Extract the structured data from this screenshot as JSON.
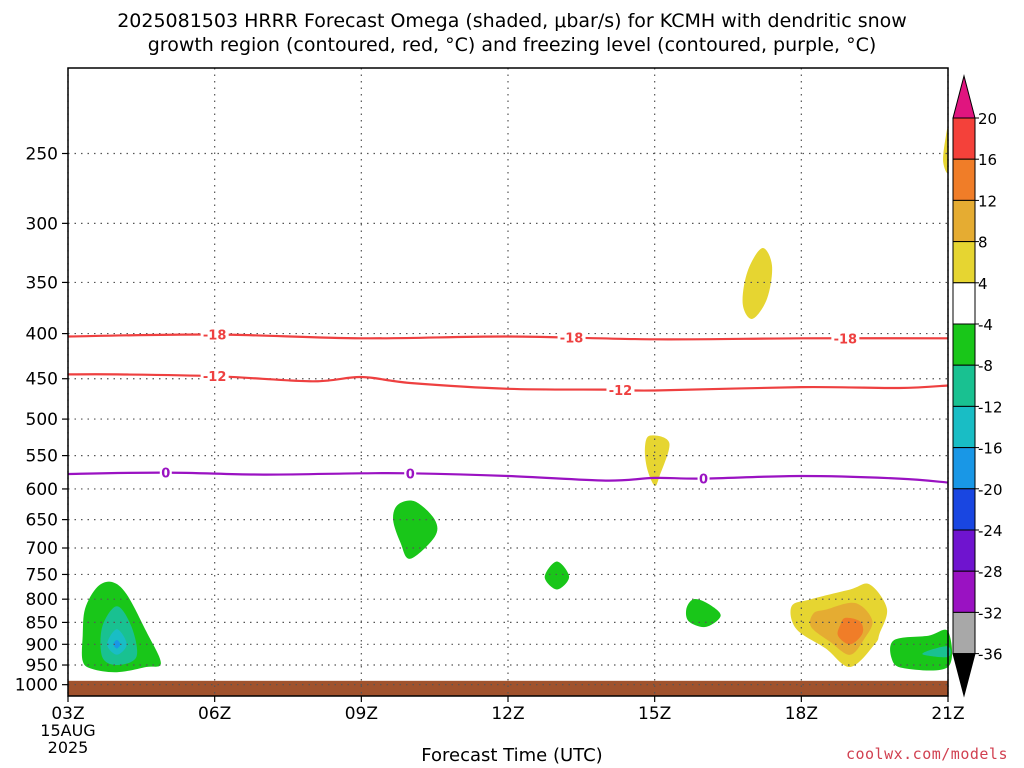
{
  "title_line1": "2025081503 HRRR Forecast Omega (shaded, μbar/s) for KCMH with dendritic snow",
  "title_line2": "growth region (contoured, red, °C) and freezing level (contoured, purple, °C)",
  "credit": "coolwx.com/models",
  "chart_data": {
    "type": "contour",
    "title": "2025081503 HRRR Forecast Omega (shaded, μbar/s) for KCMH with dendritic snow growth region (contoured, red, °C) and freezing level (contoured, purple, °C)",
    "xlabel": "Forecast Time (UTC)",
    "x_ticks": [
      "03Z",
      "06Z",
      "09Z",
      "12Z",
      "15Z",
      "18Z",
      "21Z"
    ],
    "x_tick_hours": [
      3,
      6,
      9,
      12,
      15,
      18,
      21
    ],
    "x_date_lines": [
      "15AUG",
      "2025"
    ],
    "xlim_hours": [
      3,
      21
    ],
    "y_ticks": [
      250,
      300,
      350,
      400,
      450,
      500,
      550,
      600,
      650,
      700,
      750,
      800,
      850,
      900,
      950,
      1000
    ],
    "ylim_hpa": [
      200,
      1030
    ],
    "y_scale": "log",
    "grid": true,
    "colorbar": {
      "labels": [
        "20",
        "16",
        "12",
        "8",
        "4",
        "-4",
        "-8",
        "-12",
        "-16",
        "-20",
        "-24",
        "-28",
        "-32",
        "-36"
      ],
      "colors": [
        "#e0157f",
        "#f4413a",
        "#f07d28",
        "#e5ac32",
        "#e6d531",
        "#ffffff",
        "#19c619",
        "#19c191",
        "#19bdc5",
        "#1997e6",
        "#1946e1",
        "#6f14cf",
        "#9a12c2",
        "#a8a8a8",
        "#000000"
      ]
    },
    "contours": [
      {
        "label": "-18",
        "color": "#ee4040",
        "points": [
          [
            3,
            403
          ],
          [
            6,
            401
          ],
          [
            9,
            405
          ],
          [
            12,
            403
          ],
          [
            15,
            406
          ],
          [
            18,
            405
          ],
          [
            21,
            405
          ]
        ],
        "label_hours": [
          6,
          13.3,
          18.9
        ]
      },
      {
        "label": "-12",
        "color": "#ee4040",
        "points": [
          [
            3,
            445
          ],
          [
            4,
            445
          ],
          [
            6,
            447
          ],
          [
            8,
            453
          ],
          [
            9,
            448
          ],
          [
            10,
            455
          ],
          [
            12,
            462
          ],
          [
            14,
            463
          ],
          [
            15,
            464
          ],
          [
            18,
            460
          ],
          [
            20,
            461
          ],
          [
            21,
            458
          ]
        ],
        "label_hours": [
          6,
          14.3
        ]
      },
      {
        "label": "0",
        "color": "#9a12c2",
        "points": [
          [
            3,
            577
          ],
          [
            5,
            575
          ],
          [
            7,
            578
          ],
          [
            9,
            576
          ],
          [
            10,
            576
          ],
          [
            12,
            580
          ],
          [
            14,
            587
          ],
          [
            15,
            583
          ],
          [
            16,
            584
          ],
          [
            18,
            580
          ],
          [
            20,
            584
          ],
          [
            21,
            590
          ]
        ],
        "label_hours": [
          5,
          10,
          16
        ]
      }
    ],
    "omega_regions": [
      {
        "value": "-4 to -8",
        "color": "#19c619",
        "points": [
          [
            3.6,
            775
          ],
          [
            3.9,
            765
          ],
          [
            4.2,
            790
          ],
          [
            4.6,
            870
          ],
          [
            4.9,
            945
          ],
          [
            4.6,
            955
          ],
          [
            4.0,
            968
          ],
          [
            3.5,
            960
          ],
          [
            3.3,
            940
          ],
          [
            3.3,
            880
          ],
          [
            3.35,
            820
          ]
        ]
      },
      {
        "value": "-8 to -12",
        "color": "#19c191",
        "points": [
          [
            4.0,
            815
          ],
          [
            4.3,
            860
          ],
          [
            4.4,
            930
          ],
          [
            4.0,
            950
          ],
          [
            3.7,
            930
          ],
          [
            3.7,
            860
          ]
        ]
      },
      {
        "value": "-12 to -16",
        "color": "#19bdc5",
        "points": [
          [
            4.0,
            865
          ],
          [
            4.2,
            900
          ],
          [
            4.0,
            925
          ],
          [
            3.8,
            900
          ]
        ]
      },
      {
        "value": "-16 to -20",
        "color": "#1997e6",
        "points": [
          [
            4.0,
            890
          ],
          [
            4.07,
            900
          ],
          [
            4.0,
            910
          ],
          [
            3.93,
            900
          ]
        ]
      },
      {
        "value": "-4 to -8",
        "color": "#19c619",
        "points": [
          [
            9.75,
            625
          ],
          [
            10.1,
            620
          ],
          [
            10.5,
            650
          ],
          [
            10.5,
            680
          ],
          [
            10.0,
            720
          ],
          [
            9.8,
            690
          ],
          [
            9.65,
            650
          ]
        ]
      },
      {
        "value": "-4 to -8",
        "color": "#19c619",
        "points": [
          [
            13.0,
            725
          ],
          [
            13.25,
            755
          ],
          [
            13.0,
            780
          ],
          [
            12.75,
            755
          ]
        ]
      },
      {
        "value": "-4 to -8",
        "color": "#19c619",
        "points": [
          [
            15.8,
            800
          ],
          [
            16.1,
            810
          ],
          [
            16.35,
            835
          ],
          [
            16.05,
            860
          ],
          [
            15.7,
            848
          ],
          [
            15.65,
            820
          ]
        ]
      },
      {
        "value": "-4 to -8",
        "color": "#19c619",
        "points": [
          [
            19.9,
            890
          ],
          [
            20.6,
            880
          ],
          [
            21.0,
            870
          ],
          [
            21.0,
            955
          ],
          [
            20.1,
            958
          ],
          [
            19.85,
            935
          ]
        ]
      },
      {
        "value": "-8 to -12",
        "color": "#19c191",
        "points": [
          [
            20.6,
            915
          ],
          [
            21.0,
            905
          ],
          [
            21.0,
            930
          ],
          [
            20.5,
            925
          ]
        ]
      },
      {
        "value": "4 to 8",
        "color": "#e6d531",
        "points": [
          [
            17.2,
            320
          ],
          [
            17.4,
            335
          ],
          [
            17.3,
            365
          ],
          [
            17.0,
            385
          ],
          [
            16.8,
            370
          ],
          [
            16.9,
            340
          ]
        ]
      },
      {
        "value": "4 to 8",
        "color": "#e6d531",
        "points": [
          [
            20.95,
            240
          ],
          [
            21.0,
            235
          ],
          [
            21.0,
            262
          ],
          [
            20.9,
            255
          ]
        ]
      },
      {
        "value": "4 to 8",
        "color": "#e6d531",
        "points": [
          [
            14.9,
            522
          ],
          [
            15.3,
            532
          ],
          [
            15.1,
            580
          ],
          [
            15.0,
            595
          ],
          [
            14.85,
            570
          ],
          [
            14.8,
            540
          ]
        ]
      },
      {
        "value": "4 to 8",
        "color": "#e6d531",
        "points": [
          [
            18.2,
            800
          ],
          [
            19.0,
            780
          ],
          [
            19.4,
            770
          ],
          [
            19.75,
            820
          ],
          [
            19.6,
            875
          ],
          [
            19.5,
            900
          ],
          [
            19.0,
            955
          ],
          [
            18.5,
            910
          ],
          [
            17.9,
            865
          ],
          [
            17.8,
            815
          ]
        ]
      },
      {
        "value": "8 to 12",
        "color": "#e5ac32",
        "points": [
          [
            18.5,
            822
          ],
          [
            19.1,
            808
          ],
          [
            19.45,
            845
          ],
          [
            19.3,
            885
          ],
          [
            19.0,
            925
          ],
          [
            18.6,
            895
          ],
          [
            18.2,
            860
          ],
          [
            18.25,
            830
          ]
        ]
      },
      {
        "value": "12 to 16",
        "color": "#f07d28",
        "points": [
          [
            18.9,
            840
          ],
          [
            19.2,
            848
          ],
          [
            19.25,
            875
          ],
          [
            19.0,
            900
          ],
          [
            18.75,
            880
          ],
          [
            18.8,
            855
          ]
        ]
      }
    ],
    "surface_hpa": 990
  }
}
